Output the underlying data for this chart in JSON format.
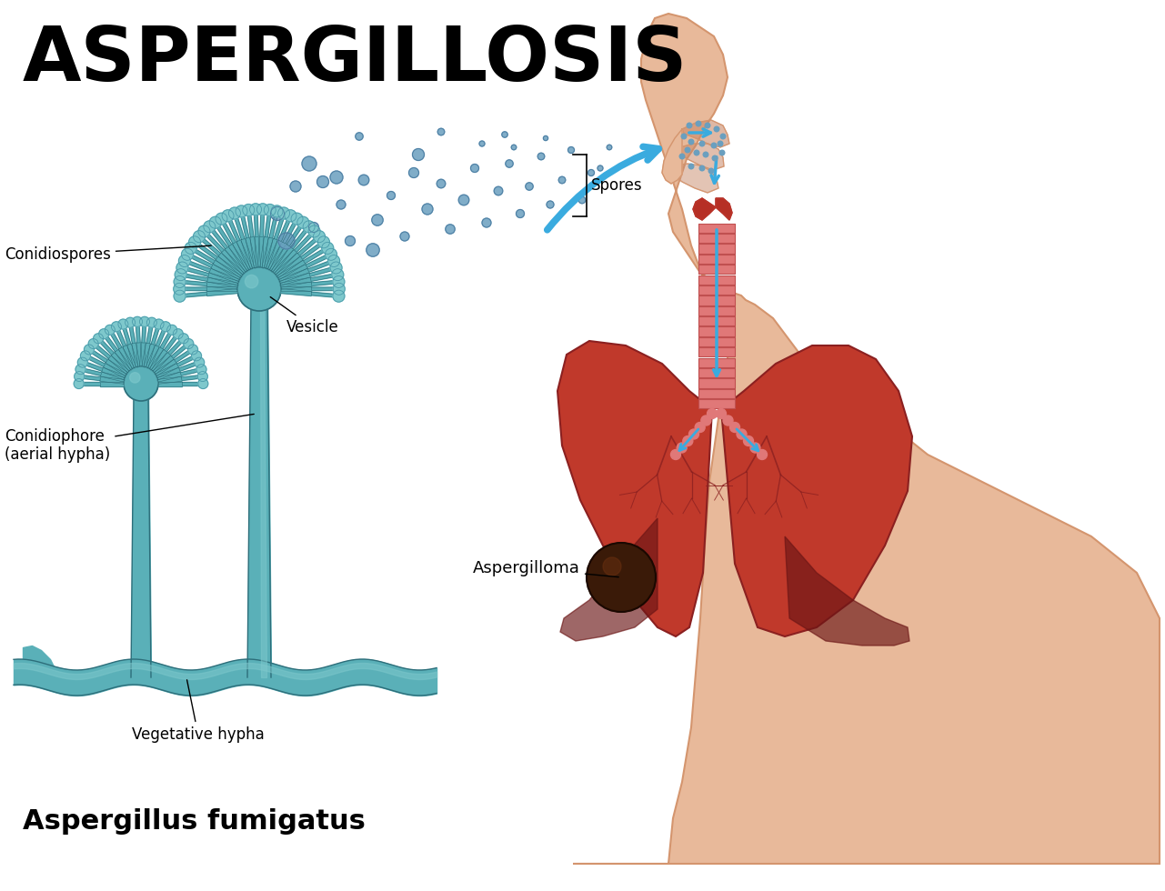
{
  "title": "ASPERGILLOSIS",
  "subtitle": "Aspergillus fumigatus",
  "bg_color": "#ffffff",
  "title_color": "#000000",
  "teal_color": "#4a9aaa",
  "teal_dark": "#2d6e7a",
  "teal_light": "#7ec8cc",
  "teal_fill": "#5ab0b8",
  "skin_color": "#e8b99a",
  "skin_dark": "#c98a6a",
  "skin_outline": "#d4956e",
  "lung_color": "#c0392b",
  "lung_highlight": "#e05050",
  "lung_dark": "#8b2020",
  "lung_shadow": "#6b1515",
  "trachea_color": "#e07878",
  "trachea_ring": "#c05050",
  "throat_red": "#a01818",
  "blue_color": "#3aabdf",
  "spore_color": "#6a9fbf",
  "spore_outline": "#4a7a9f",
  "label_fontsize": 12,
  "title_fontsize": 60,
  "subtitle_fontsize": 22,
  "labels": {
    "conidiospores": "Conidiospores",
    "vesicle": "Vesicle",
    "conidiophore": "Conidiophore\n(aerial hypha)",
    "vegetative_hypha": "Vegetative hypha",
    "aspergilloma": "Aspergilloma",
    "spores": "Spores"
  }
}
